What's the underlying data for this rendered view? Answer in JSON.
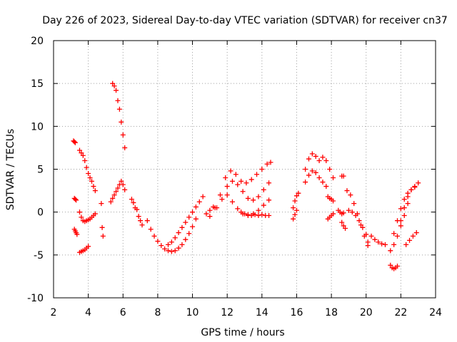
{
  "chart_data": {
    "type": "scatter",
    "title": "Day 226 of 2023, Sidereal Day-to-day VTEC variation (SDTVAR) for receiver cn37",
    "xlabel": "GPS time / hours",
    "ylabel": "SDTVAR / TECUs",
    "xlim": [
      2,
      24
    ],
    "ylim": [
      -10,
      20
    ],
    "xticks": [
      2,
      4,
      6,
      8,
      10,
      12,
      14,
      16,
      18,
      20,
      22,
      24
    ],
    "yticks": [
      -10,
      -5,
      0,
      5,
      10,
      15,
      20
    ],
    "grid": true,
    "marker": "+",
    "color": "#ff0000",
    "series": [
      {
        "name": "s01",
        "x": [
          3.15,
          3.2,
          3.25
        ],
        "y": [
          8.3,
          8.2,
          8.1
        ]
      },
      {
        "name": "s02",
        "x": [
          3.2,
          3.25,
          3.3
        ],
        "y": [
          1.6,
          1.5,
          1.4
        ]
      },
      {
        "name": "s03",
        "x": [
          3.2,
          3.25,
          3.3,
          3.35
        ],
        "y": [
          -2.0,
          -2.2,
          -2.4,
          -2.6
        ]
      },
      {
        "name": "s04",
        "x": [
          3.5,
          3.6,
          3.7,
          3.8,
          3.9,
          4.0,
          4.1,
          4.2,
          4.3,
          4.4
        ],
        "y": [
          7.2,
          6.9,
          6.6,
          6.0,
          5.2,
          4.5,
          4.0,
          3.6,
          3.0,
          2.5
        ]
      },
      {
        "name": "s05",
        "x": [
          3.5,
          3.6,
          3.7,
          3.8,
          3.9,
          4.0
        ],
        "y": [
          -4.7,
          -4.6,
          -4.5,
          -4.4,
          -4.2,
          -4.0
        ]
      },
      {
        "name": "s06",
        "x": [
          3.5,
          3.6,
          3.7,
          3.8,
          3.9,
          4.0,
          4.1,
          4.2,
          4.3,
          4.4
        ],
        "y": [
          0.0,
          -0.6,
          -1.0,
          -1.1,
          -1.0,
          -0.9,
          -0.8,
          -0.6,
          -0.4,
          -0.2
        ]
      },
      {
        "name": "s07",
        "x": [
          4.75,
          4.8,
          4.85
        ],
        "y": [
          1.0,
          -1.8,
          -2.8
        ]
      },
      {
        "name": "s08",
        "x": [
          5.4,
          5.5,
          5.6,
          5.7,
          5.8
        ],
        "y": [
          15.0,
          14.7,
          14.2,
          13.0,
          12.0
        ]
      },
      {
        "name": "s09",
        "x": [
          5.9,
          6.0,
          6.1
        ],
        "y": [
          10.5,
          9.0,
          7.5
        ]
      },
      {
        "name": "s10",
        "x": [
          5.3,
          5.4,
          5.5,
          5.6,
          5.7,
          5.8,
          5.9,
          6.0,
          6.1
        ],
        "y": [
          1.2,
          1.6,
          2.0,
          2.4,
          2.8,
          3.2,
          3.6,
          3.2,
          2.6
        ]
      },
      {
        "name": "s11",
        "x": [
          6.5,
          6.6,
          6.7,
          6.8,
          6.9,
          7.0,
          7.1
        ],
        "y": [
          1.5,
          1.1,
          0.5,
          0.3,
          -0.5,
          -1.0,
          -1.5
        ]
      },
      {
        "name": "s12",
        "x": [
          7.4,
          7.6,
          7.8,
          8.0,
          8.2,
          8.4,
          8.6,
          8.8,
          9.0,
          9.2,
          9.4,
          9.6,
          9.8,
          10.0,
          10.2
        ],
        "y": [
          -1.0,
          -2.0,
          -2.8,
          -3.4,
          -3.9,
          -4.3,
          -4.5,
          -4.6,
          -4.5,
          -4.2,
          -3.8,
          -3.2,
          -2.5,
          -1.7,
          -0.8
        ]
      },
      {
        "name": "s13",
        "x": [
          8.6,
          8.8,
          9.0,
          9.2,
          9.4,
          9.6,
          9.8,
          10.0,
          10.2,
          10.4,
          10.6
        ],
        "y": [
          -3.8,
          -3.5,
          -3.0,
          -2.4,
          -1.8,
          -1.2,
          -0.6,
          0.0,
          0.6,
          1.2,
          1.8
        ]
      },
      {
        "name": "s14",
        "x": [
          10.8,
          11.0,
          11.2
        ],
        "y": [
          -0.2,
          0.2,
          0.6
        ]
      },
      {
        "name": "s15",
        "x": [
          11.0,
          11.3,
          11.6,
          11.9,
          12.2,
          12.5,
          12.8,
          13.1,
          13.4,
          13.7,
          14.0,
          14.3,
          14.5
        ],
        "y": [
          -0.5,
          0.5,
          2.0,
          4.0,
          4.8,
          4.4,
          3.6,
          3.4,
          3.8,
          4.4,
          5.0,
          5.6,
          5.8
        ]
      },
      {
        "name": "s16",
        "x": [
          11.4,
          11.7,
          12.0,
          12.3,
          12.6,
          12.9,
          13.2,
          13.5,
          13.8,
          14.1,
          14.4
        ],
        "y": [
          0.5,
          1.5,
          3.0,
          3.6,
          3.2,
          2.4,
          1.6,
          1.4,
          1.8,
          2.6,
          3.4
        ]
      },
      {
        "name": "s17",
        "x": [
          12.0,
          12.3,
          12.6,
          12.9,
          13.2,
          13.5,
          13.8,
          14.1,
          14.4
        ],
        "y": [
          2.0,
          1.2,
          0.4,
          -0.2,
          -0.4,
          -0.2,
          0.2,
          0.8,
          1.4
        ]
      },
      {
        "name": "s18",
        "x": [
          12.8,
          13.0,
          13.2,
          13.4,
          13.6,
          13.8,
          14.0,
          14.2,
          14.4
        ],
        "y": [
          0.0,
          -0.2,
          -0.3,
          -0.4,
          -0.3,
          -0.4,
          -0.3,
          -0.4,
          -0.4
        ]
      },
      {
        "name": "s19",
        "x": [
          15.8,
          15.9,
          16.0,
          16.1
        ],
        "y": [
          0.5,
          1.3,
          1.9,
          2.2
        ]
      },
      {
        "name": "s20",
        "x": [
          15.8,
          15.9,
          16.0
        ],
        "y": [
          -0.8,
          -0.3,
          0.2
        ]
      },
      {
        "name": "s21",
        "x": [
          16.5,
          16.7,
          16.9,
          17.1,
          17.3,
          17.5,
          17.7,
          17.9,
          18.1
        ],
        "y": [
          5.0,
          6.2,
          6.8,
          6.5,
          6.0,
          6.4,
          6.0,
          5.0,
          4.0
        ]
      },
      {
        "name": "s22",
        "x": [
          16.5,
          16.7,
          16.9,
          17.1,
          17.3,
          17.5,
          17.7
        ],
        "y": [
          3.5,
          4.3,
          4.8,
          4.6,
          4.0,
          3.5,
          3.0
        ]
      },
      {
        "name": "s23",
        "x": [
          17.8,
          17.9,
          18.0,
          18.1
        ],
        "y": [
          1.8,
          1.6,
          1.5,
          1.3
        ]
      },
      {
        "name": "s24",
        "x": [
          17.8,
          17.9,
          18.0,
          18.1
        ],
        "y": [
          -0.8,
          -0.6,
          -0.4,
          -0.2
        ]
      },
      {
        "name": "s25",
        "x": [
          18.6,
          18.7
        ],
        "y": [
          4.2,
          4.2
        ]
      },
      {
        "name": "s26",
        "x": [
          18.6,
          18.7,
          18.8
        ],
        "y": [
          -1.2,
          -1.6,
          -1.9
        ]
      },
      {
        "name": "s27",
        "x": [
          18.4,
          18.5,
          18.6,
          18.7
        ],
        "y": [
          0.2,
          0.0,
          -0.2,
          -0.1
        ]
      },
      {
        "name": "s28",
        "x": [
          18.9,
          19.1,
          19.3,
          19.5,
          19.7,
          19.9,
          20.1
        ],
        "y": [
          2.5,
          2.0,
          1.0,
          -0.2,
          -1.5,
          -2.8,
          -3.5
        ]
      },
      {
        "name": "s29",
        "x": [
          19.0,
          19.2,
          19.4,
          19.6,
          19.8,
          20.0
        ],
        "y": [
          0.2,
          0.0,
          -0.4,
          -1.0,
          -1.8,
          -2.6
        ]
      },
      {
        "name": "s30",
        "x": [
          20.1
        ],
        "y": [
          -3.9
        ]
      },
      {
        "name": "s31",
        "x": [
          20.3,
          20.5,
          20.7,
          20.9,
          21.1
        ],
        "y": [
          -2.8,
          -3.2,
          -3.5,
          -3.7,
          -3.8
        ]
      },
      {
        "name": "s32",
        "x": [
          21.4,
          21.5,
          21.6,
          21.7,
          21.8
        ],
        "y": [
          -6.2,
          -6.5,
          -6.6,
          -6.5,
          -6.3
        ]
      },
      {
        "name": "s33",
        "x": [
          21.4,
          21.6,
          21.8,
          22.0,
          22.2,
          22.4
        ],
        "y": [
          -4.5,
          -3.8,
          -2.8,
          -1.6,
          -0.4,
          1.0
        ]
      },
      {
        "name": "s34",
        "x": [
          21.6,
          21.8,
          22.0,
          22.2,
          22.4,
          22.6,
          22.8
        ],
        "y": [
          -2.5,
          -1.0,
          0.4,
          1.5,
          2.2,
          2.6,
          2.9
        ]
      },
      {
        "name": "s35",
        "x": [
          22.0,
          22.2,
          22.4,
          22.6,
          22.8,
          23.0
        ],
        "y": [
          -1.0,
          0.5,
          1.8,
          2.6,
          3.0,
          3.4
        ]
      },
      {
        "name": "s36",
        "x": [
          22.3,
          22.5,
          22.7,
          22.9
        ],
        "y": [
          -3.8,
          -3.3,
          -2.8,
          -2.4
        ]
      }
    ]
  }
}
